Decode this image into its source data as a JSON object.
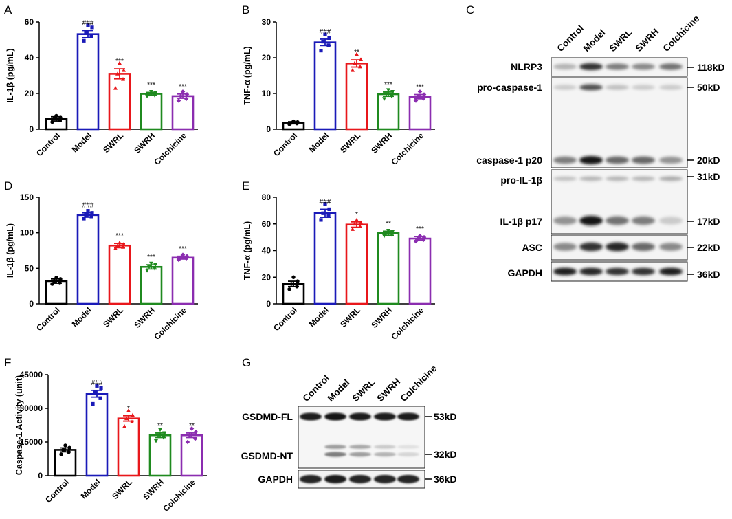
{
  "chart_data": [
    {
      "panel": "A",
      "type": "bar",
      "ylabel": "IL-1β (pg/mL)",
      "ylim": [
        0,
        60
      ],
      "yticks": [
        0,
        20,
        40,
        60
      ],
      "categories": [
        "Control",
        "Model",
        "SWRL",
        "SWRH",
        "Colchicine"
      ],
      "values": [
        5.8,
        53.2,
        31.0,
        19.8,
        18.5
      ],
      "errors": [
        1.2,
        2.0,
        2.8,
        0.8,
        1.2
      ],
      "points": [
        [
          4,
          5,
          6,
          6.5,
          7.5
        ],
        [
          49.5,
          52,
          54.5,
          57,
          58
        ],
        [
          23,
          28,
          31,
          33,
          37
        ],
        [
          18.5,
          19,
          19.5,
          20.5,
          21
        ],
        [
          16,
          17,
          18.5,
          19.5,
          21
        ]
      ],
      "annotations": [
        "",
        "###",
        "***",
        "***",
        "***"
      ]
    },
    {
      "panel": "B",
      "type": "bar",
      "ylabel": "TNF-α (pg/mL)",
      "ylim": [
        0,
        30
      ],
      "yticks": [
        0,
        10,
        20,
        30
      ],
      "categories": [
        "Control",
        "Model",
        "SWRL",
        "SWRH",
        "Colchicine"
      ],
      "values": [
        1.8,
        24.3,
        18.4,
        9.8,
        9.1
      ],
      "errors": [
        0.3,
        0.9,
        1.0,
        0.6,
        0.6
      ],
      "points": [
        [
          1.4,
          1.6,
          1.8,
          2.0,
          2.2
        ],
        [
          22,
          23.5,
          24.5,
          25.5,
          26.5
        ],
        [
          16.5,
          17.5,
          18.5,
          19.5,
          21
        ],
        [
          8.5,
          9.2,
          9.8,
          10.5,
          11
        ],
        [
          8,
          8.6,
          9.1,
          9.7,
          10.5
        ]
      ],
      "annotations": [
        "",
        "###",
        "**",
        "***",
        "***"
      ]
    },
    {
      "panel": "D",
      "type": "bar",
      "ylabel": "IL-1β (pg/mL)",
      "ylim": [
        0,
        150
      ],
      "yticks": [
        0,
        50,
        100,
        150
      ],
      "categories": [
        "Control",
        "Model",
        "SWRL",
        "SWRH",
        "Colchicine"
      ],
      "values": [
        32,
        125,
        82,
        52,
        65
      ],
      "errors": [
        3,
        3,
        3,
        3,
        2
      ],
      "points": [
        [
          28,
          30,
          32,
          35,
          37
        ],
        [
          120,
          123,
          125,
          128,
          131
        ],
        [
          78,
          80,
          82,
          84,
          86
        ],
        [
          47,
          50,
          52,
          55,
          57
        ],
        [
          62,
          64,
          65,
          67,
          69
        ]
      ],
      "annotations": [
        "",
        "###",
        "***",
        "***",
        "***"
      ]
    },
    {
      "panel": "E",
      "type": "bar",
      "ylabel": "TNF-α (pg/mL)",
      "ylim": [
        0,
        80
      ],
      "yticks": [
        0,
        20,
        40,
        60,
        80
      ],
      "categories": [
        "Control",
        "Model",
        "SWRL",
        "SWRH",
        "Colchicine"
      ],
      "values": [
        15,
        68,
        59.5,
        53,
        49
      ],
      "errors": [
        2,
        3,
        2,
        1.5,
        1.5
      ],
      "points": [
        [
          11,
          13,
          15,
          17,
          20
        ],
        [
          63,
          66,
          68,
          71,
          75
        ],
        [
          56,
          58,
          60,
          61,
          63
        ],
        [
          51,
          52,
          53,
          54,
          55
        ],
        [
          47,
          48,
          49,
          50,
          51
        ]
      ],
      "annotations": [
        "",
        "###",
        "*",
        "**",
        "***"
      ]
    },
    {
      "panel": "F",
      "type": "bar",
      "ylabel": "Caspase-1 Activity (unit)",
      "ylim": [
        0,
        45000
      ],
      "yticks": [
        0,
        15000,
        30000,
        45000
      ],
      "categories": [
        "Control",
        "Model",
        "SWRL",
        "SWRH",
        "Colchicine"
      ],
      "values": [
        11500,
        36500,
        25500,
        18000,
        18000
      ],
      "errors": [
        900,
        1500,
        1200,
        1000,
        1000
      ],
      "points": [
        [
          9500,
          10500,
          11500,
          12500,
          13500
        ],
        [
          32000,
          34500,
          37000,
          39000,
          40000
        ],
        [
          22000,
          24000,
          25500,
          27000,
          29000
        ],
        [
          15500,
          17000,
          18000,
          19000,
          20500
        ],
        [
          15000,
          16500,
          18000,
          19500,
          21000
        ]
      ],
      "annotations": [
        "",
        "###",
        "*",
        "**",
        "**"
      ]
    }
  ],
  "panels": {
    "labels": [
      "A",
      "B",
      "C",
      "D",
      "E",
      "F",
      "G"
    ],
    "bar_colors": [
      "#000000",
      "#1a1ab8",
      "#e8171b",
      "#1f8a1f",
      "#8b2db0"
    ]
  },
  "blot_c": {
    "lanes": [
      "Control",
      "Model",
      "SWRL",
      "SWRH",
      "Colchicine"
    ],
    "rows": [
      {
        "label": "NLRP3",
        "size": "118kD"
      },
      {
        "label": "pro-caspase-1",
        "size": "50kD"
      },
      {
        "label": "caspase-1 p20",
        "size": "20kD"
      },
      {
        "label": "pro-IL-1β",
        "size": "31kD"
      },
      {
        "label": "IL-1β p17",
        "size": "17kD"
      },
      {
        "label": "ASC",
        "size": "22kD"
      },
      {
        "label": "GAPDH",
        "size": "36kD"
      }
    ]
  },
  "blot_g": {
    "lanes": [
      "Control",
      "Model",
      "SWRL",
      "SWRH",
      "Colchicine"
    ],
    "rows": [
      {
        "label": "GSDMD-FL",
        "size": "53kD"
      },
      {
        "label": "GSDMD-NT",
        "size": "32kD"
      },
      {
        "label": "GAPDH",
        "size": "36kD"
      }
    ]
  }
}
